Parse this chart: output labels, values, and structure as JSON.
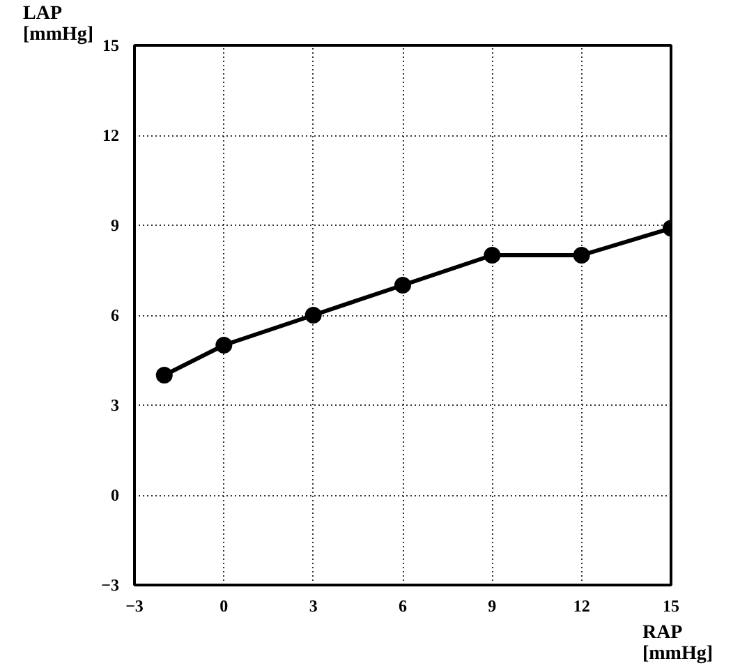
{
  "chart_data": {
    "type": "line",
    "xlabel": "RAP\n[mmHg]",
    "ylabel": "LAP\n[mmHg]",
    "x": [
      -2,
      0,
      3,
      6,
      9,
      12,
      15
    ],
    "series": [
      {
        "color": "#000000",
        "values": [
          4,
          5,
          6,
          7,
          8,
          8,
          8.9
        ]
      }
    ],
    "xlim": [
      -3,
      15
    ],
    "ylim": [
      -3,
      15
    ],
    "xticks": [
      -3,
      0,
      3,
      6,
      9,
      12,
      15
    ],
    "yticks": [
      -3,
      0,
      3,
      6,
      9,
      12,
      15
    ],
    "grid": true,
    "marker": "circle",
    "line_style": "solid"
  }
}
